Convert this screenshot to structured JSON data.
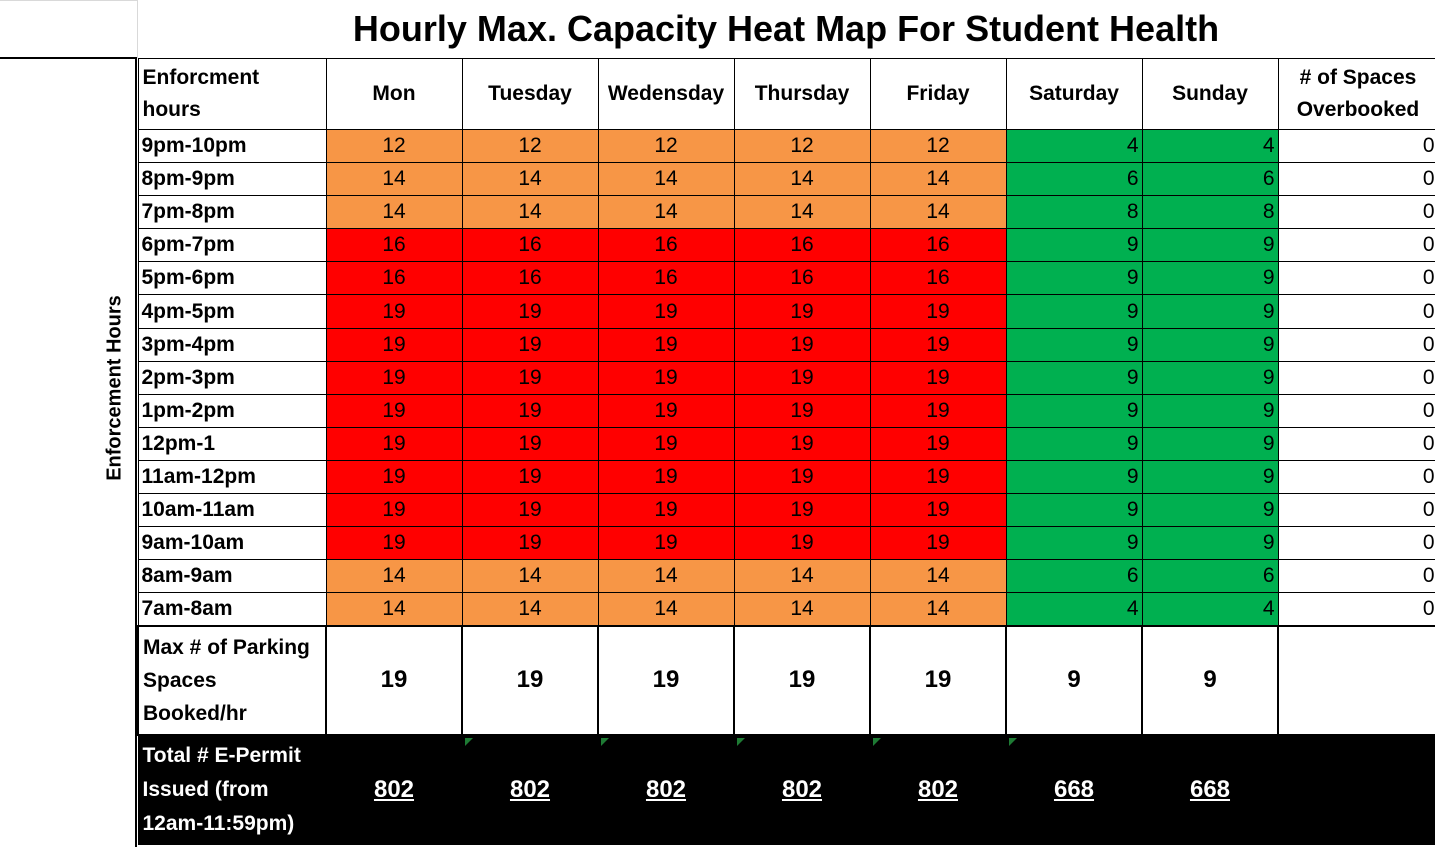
{
  "title": "Hourly Max. Capacity Heat Map For Student Health",
  "side_label": "Enforcement Hours",
  "header": {
    "row_label": "Enforcment hours",
    "days": [
      "Mon",
      "Tuesday",
      "Wedensday",
      "Thursday",
      "Friday",
      "Saturday",
      "Sunday"
    ],
    "overbooked": "# of Spaces Overbooked"
  },
  "rows": [
    {
      "hour": "9pm-10pm",
      "values": [
        "12",
        "12",
        "12",
        "12",
        "12",
        "4",
        "4"
      ],
      "overbooked": "0"
    },
    {
      "hour": "8pm-9pm",
      "values": [
        "14",
        "14",
        "14",
        "14",
        "14",
        "6",
        "6"
      ],
      "overbooked": "0"
    },
    {
      "hour": "7pm-8pm",
      "values": [
        "14",
        "14",
        "14",
        "14",
        "14",
        "8",
        "8"
      ],
      "overbooked": "0"
    },
    {
      "hour": "6pm-7pm",
      "values": [
        "16",
        "16",
        "16",
        "16",
        "16",
        "9",
        "9"
      ],
      "overbooked": "0"
    },
    {
      "hour": "5pm-6pm",
      "values": [
        "16",
        "16",
        "16",
        "16",
        "16",
        "9",
        "9"
      ],
      "overbooked": "0"
    },
    {
      "hour": "4pm-5pm",
      "values": [
        "19",
        "19",
        "19",
        "19",
        "19",
        "9",
        "9"
      ],
      "overbooked": "0"
    },
    {
      "hour": "3pm-4pm",
      "values": [
        "19",
        "19",
        "19",
        "19",
        "19",
        "9",
        "9"
      ],
      "overbooked": "0"
    },
    {
      "hour": "2pm-3pm",
      "values": [
        "19",
        "19",
        "19",
        "19",
        "19",
        "9",
        "9"
      ],
      "overbooked": "0"
    },
    {
      "hour": "1pm-2pm",
      "values": [
        "19",
        "19",
        "19",
        "19",
        "19",
        "9",
        "9"
      ],
      "overbooked": "0"
    },
    {
      "hour": "12pm-1",
      "values": [
        "19",
        "19",
        "19",
        "19",
        "19",
        "9",
        "9"
      ],
      "overbooked": "0"
    },
    {
      "hour": "11am-12pm",
      "values": [
        "19",
        "19",
        "19",
        "19",
        "19",
        "9",
        "9"
      ],
      "overbooked": "0"
    },
    {
      "hour": "10am-11am",
      "values": [
        "19",
        "19",
        "19",
        "19",
        "19",
        "9",
        "9"
      ],
      "overbooked": "0"
    },
    {
      "hour": "9am-10am",
      "values": [
        "19",
        "19",
        "19",
        "19",
        "19",
        "9",
        "9"
      ],
      "overbooked": "0"
    },
    {
      "hour": "8am-9am",
      "values": [
        "14",
        "14",
        "14",
        "14",
        "14",
        "6",
        "6"
      ],
      "overbooked": "0"
    },
    {
      "hour": "7am-8am",
      "values": [
        "14",
        "14",
        "14",
        "14",
        "14",
        "4",
        "4"
      ],
      "overbooked": "0"
    }
  ],
  "max_row": {
    "label": "Max # of Parking Spaces Booked/hr",
    "values": [
      "19",
      "19",
      "19",
      "19",
      "19",
      "9",
      "9"
    ]
  },
  "total_row": {
    "label": "Total # E-Permit Issued (from 12am-11:59pm)",
    "values": [
      "802",
      "802",
      "802",
      "802",
      "802",
      "668",
      "668"
    ]
  },
  "colors": {
    "orange": "#f79646",
    "red": "#ff0000",
    "green": "#00b050",
    "marker": "#1e7b34"
  },
  "chart_data": {
    "type": "heatmap",
    "title": "Hourly Max. Capacity Heat Map For Student Health",
    "ylabel": "Enforcement Hours",
    "x": [
      "Mon",
      "Tuesday",
      "Wedensday",
      "Thursday",
      "Friday",
      "Saturday",
      "Sunday"
    ],
    "y": [
      "9pm-10pm",
      "8pm-9pm",
      "7pm-8pm",
      "6pm-7pm",
      "5pm-6pm",
      "4pm-5pm",
      "3pm-4pm",
      "2pm-3pm",
      "1pm-2pm",
      "12pm-1",
      "11am-12pm",
      "10am-11am",
      "9am-10am",
      "8am-9am",
      "7am-8am"
    ],
    "values": [
      [
        12,
        12,
        12,
        12,
        12,
        4,
        4
      ],
      [
        14,
        14,
        14,
        14,
        14,
        6,
        6
      ],
      [
        14,
        14,
        14,
        14,
        14,
        8,
        8
      ],
      [
        16,
        16,
        16,
        16,
        16,
        9,
        9
      ],
      [
        16,
        16,
        16,
        16,
        16,
        9,
        9
      ],
      [
        19,
        19,
        19,
        19,
        19,
        9,
        9
      ],
      [
        19,
        19,
        19,
        19,
        19,
        9,
        9
      ],
      [
        19,
        19,
        19,
        19,
        19,
        9,
        9
      ],
      [
        19,
        19,
        19,
        19,
        19,
        9,
        9
      ],
      [
        19,
        19,
        19,
        19,
        19,
        9,
        9
      ],
      [
        19,
        19,
        19,
        19,
        19,
        9,
        9
      ],
      [
        19,
        19,
        19,
        19,
        19,
        9,
        9
      ],
      [
        19,
        19,
        19,
        19,
        19,
        9,
        9
      ],
      [
        14,
        14,
        14,
        14,
        14,
        6,
        6
      ],
      [
        14,
        14,
        14,
        14,
        14,
        4,
        4
      ]
    ],
    "overbooked": [
      0,
      0,
      0,
      0,
      0,
      0,
      0,
      0,
      0,
      0,
      0,
      0,
      0,
      0,
      0
    ],
    "max_per_day": [
      19,
      19,
      19,
      19,
      19,
      9,
      9
    ],
    "total_permits": [
      802,
      802,
      802,
      802,
      802,
      668,
      668
    ]
  }
}
